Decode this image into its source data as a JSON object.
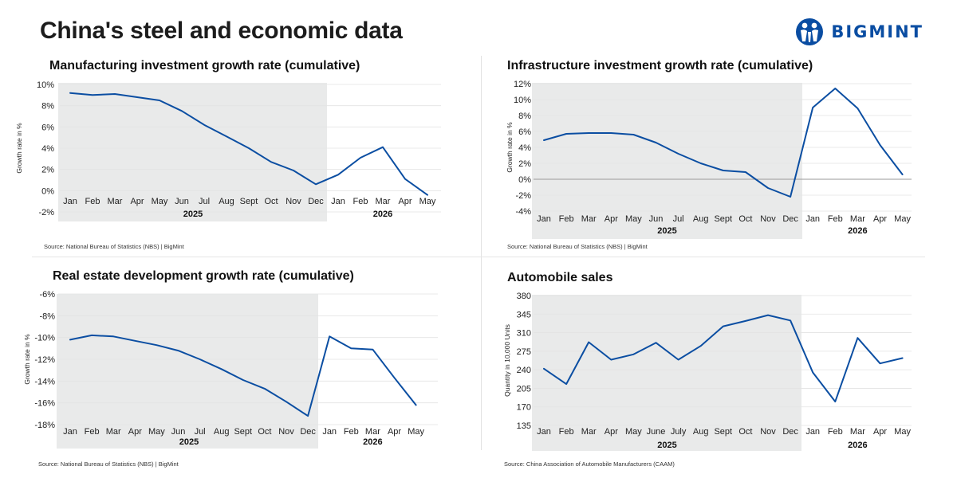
{
  "page": {
    "title": "China's steel and economic data"
  },
  "logo": {
    "text": "BIGMINT",
    "icon": "bigmint-logo-icon",
    "color": "#0a4da2"
  },
  "colors": {
    "line": "#0b4ea2",
    "shade": "#e9eaea",
    "grid": "#e3e3e3",
    "zero": "#9a9a9a"
  },
  "chart_data": [
    {
      "type": "line",
      "title": "Manufacturing investment growth rate (cumulative)",
      "ylabel": "Growth rate in %",
      "categories": [
        "Jan",
        "Feb",
        "Mar",
        "Apr",
        "May",
        "Jun",
        "Jul",
        "Aug",
        "Sept",
        "Oct",
        "Nov",
        "Dec",
        "Jan",
        "Feb",
        "Mar",
        "Apr",
        "May"
      ],
      "values": [
        9.2,
        9.0,
        9.1,
        8.8,
        8.5,
        7.5,
        6.2,
        5.1,
        4.0,
        2.7,
        1.9,
        0.6,
        1.5,
        3.1,
        4.1,
        1.1,
        -0.4
      ],
      "ylim": [
        -2,
        10
      ],
      "yticks": [
        -2,
        0,
        2,
        4,
        6,
        8,
        10
      ],
      "ytick_labels": [
        "-2%",
        "0%",
        "2%",
        "4%",
        "6%",
        "8%",
        "10%"
      ],
      "year_labels": [
        "2025",
        "2026"
      ],
      "shaded_count": 12,
      "zero_line": false,
      "source": "Source: National Bureau of Statistics (NBS) |  BigMint"
    },
    {
      "type": "line",
      "title": "Infrastructure investment growth rate (cumulative)",
      "ylabel": "Growth rate in %",
      "categories": [
        "Jan",
        "Feb",
        "Mar",
        "Apr",
        "May",
        "Jun",
        "Jul",
        "Aug",
        "Sept",
        "Oct",
        "Nov",
        "Dec",
        "Jan",
        "Feb",
        "Mar",
        "Apr",
        "May"
      ],
      "values": [
        4.9,
        5.7,
        5.8,
        5.8,
        5.6,
        4.6,
        3.2,
        2.0,
        1.1,
        0.9,
        -1.1,
        -2.2,
        9.0,
        11.4,
        8.9,
        4.3,
        0.6
      ],
      "ylim": [
        -4,
        12
      ],
      "yticks": [
        -4,
        -2,
        0,
        2,
        4,
        6,
        8,
        10,
        12
      ],
      "ytick_labels": [
        "-4%",
        "-2%",
        "0%",
        "2%",
        "4%",
        "6%",
        "8%",
        "10%",
        "12%"
      ],
      "year_labels": [
        "2025",
        "2026"
      ],
      "shaded_count": 12,
      "zero_line": true,
      "source": "Source: National Bureau of Statistics (NBS) |  BigMint"
    },
    {
      "type": "line",
      "title": "Real estate development growth rate (cumulative)",
      "ylabel": "Growth rate in %",
      "categories": [
        "Jan",
        "Feb",
        "Mar",
        "Apr",
        "May",
        "Jun",
        "Jul",
        "Aug",
        "Sept",
        "Oct",
        "Nov",
        "Dec",
        "Jan",
        "Feb",
        "Mar",
        "Apr",
        "May"
      ],
      "values": [
        -10.2,
        -9.8,
        -9.9,
        -10.3,
        -10.7,
        -11.2,
        -12.0,
        -12.9,
        -13.9,
        -14.7,
        -15.9,
        -17.2,
        -9.9,
        -11.0,
        -11.1,
        -13.7,
        -16.2
      ],
      "ylim": [
        -18,
        -6
      ],
      "yticks": [
        -18,
        -16,
        -14,
        -12,
        -10,
        -8,
        -6
      ],
      "ytick_labels": [
        "-18%",
        "-16%",
        "-14%",
        "-12%",
        "-10%",
        "-8%",
        "-6%"
      ],
      "year_labels": [
        "2025",
        "2026"
      ],
      "shaded_count": 12,
      "zero_line": false,
      "source": "Source: National Bureau of Statistics (NBS) |  BigMint"
    },
    {
      "type": "line",
      "title": "Automobile sales",
      "ylabel": "Quantity in 10,000 Units",
      "categories": [
        "Jan",
        "Feb",
        "Mar",
        "Apr",
        "May",
        "June",
        "July",
        "Aug",
        "Sept",
        "Oct",
        "Nov",
        "Dec",
        "Jan",
        "Feb",
        "Mar",
        "Apr",
        "May"
      ],
      "values": [
        242,
        213,
        292,
        259,
        269,
        291,
        259,
        285,
        322,
        332,
        343,
        333,
        235,
        180,
        300,
        252,
        262
      ],
      "ylim": [
        135,
        380
      ],
      "yticks": [
        135,
        170,
        205,
        240,
        275,
        310,
        345,
        380
      ],
      "ytick_labels": [
        "135",
        "170",
        "205",
        "240",
        "275",
        "310",
        "345",
        "380"
      ],
      "year_labels": [
        "2025",
        "2026"
      ],
      "shaded_count": 12,
      "zero_line": false,
      "source": "Source: China Association of Automobile Manufacturers (CAAM)"
    }
  ]
}
